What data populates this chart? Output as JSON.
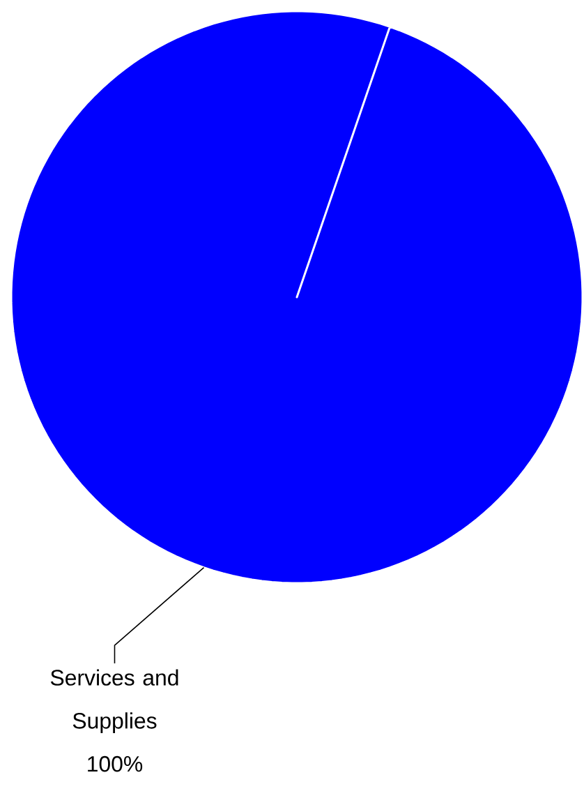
{
  "chart_data": {
    "type": "pie",
    "categories": [
      "Services and Supplies"
    ],
    "values": [
      100
    ],
    "colors": [
      "#0000ff"
    ],
    "value_labels": [
      "100%"
    ]
  }
}
